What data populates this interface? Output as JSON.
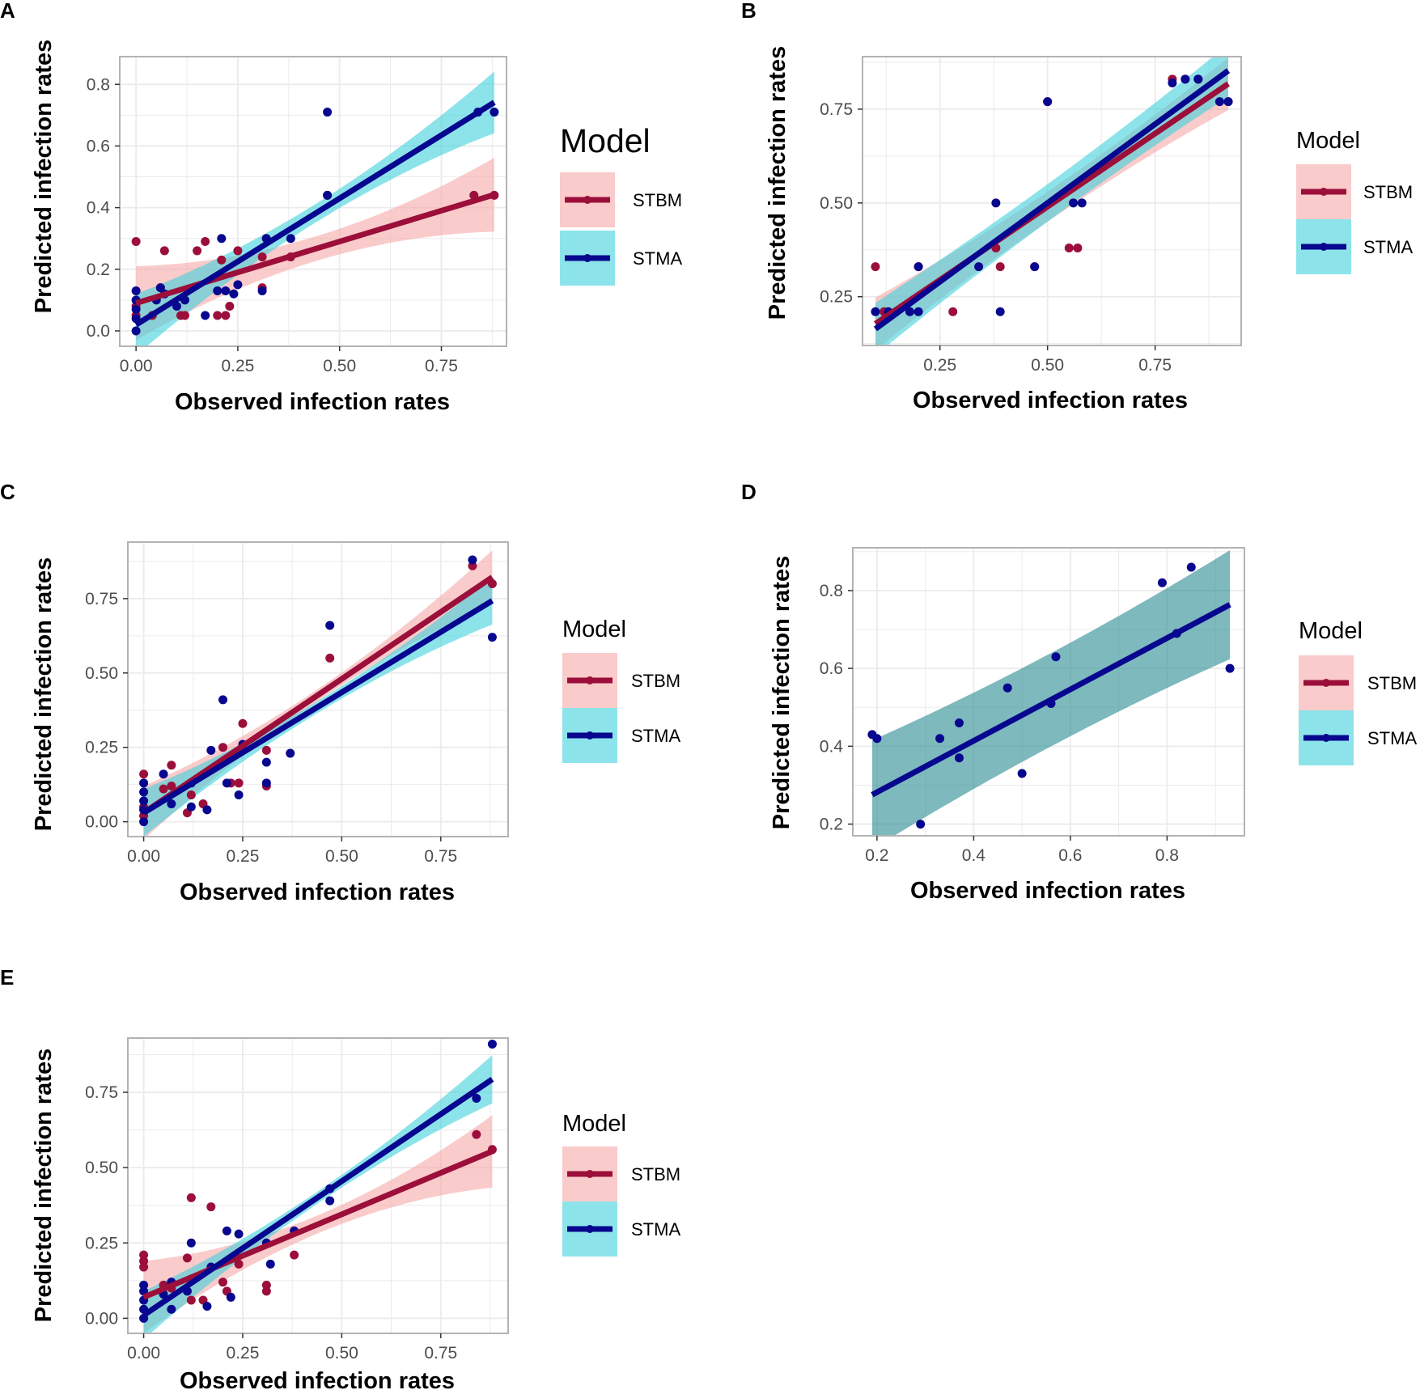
{
  "figure": {
    "colors": {
      "stbm": "#9B0F3A",
      "stma": "#08078F",
      "stbm_band": "#F7A8A8",
      "stma_band": "#3FD2DC",
      "overlap_band": "#2E8E94"
    }
  },
  "chart_data": [
    {
      "type": "scatter",
      "panel_label": "A",
      "xlabel": "Observed infection rates",
      "ylabel": "Predicted infection rates",
      "xlim": [
        -0.04,
        0.91
      ],
      "ylim": [
        -0.05,
        0.89
      ],
      "xticks": [
        0,
        0.25,
        0.5,
        0.75
      ],
      "xtick_labels": [
        "0.00",
        "0.25",
        "0.50",
        "0.75"
      ],
      "yticks": [
        0,
        0.2,
        0.4,
        0.6,
        0.8
      ],
      "ytick_labels": [
        "0.0",
        "0.2",
        "0.4",
        "0.6",
        "0.8"
      ],
      "legend": {
        "title": "Model",
        "entries": [
          "STBM",
          "STMA"
        ]
      },
      "series": [
        {
          "name": "STBM",
          "fit": {
            "intercept": 0.09,
            "slope": 0.4,
            "band_lo": 0.04,
            "band_hi": 0.12,
            "band_x0": 0.0,
            "band_x1": 0.88
          },
          "points": [
            [
              0,
              0.29
            ],
            [
              0,
              0.05
            ],
            [
              0,
              0.08
            ],
            [
              0.04,
              0.05
            ],
            [
              0.06,
              0.14
            ],
            [
              0.07,
              0.26
            ],
            [
              0.11,
              0.05
            ],
            [
              0.12,
              0.05
            ],
            [
              0.15,
              0.26
            ],
            [
              0.17,
              0.29
            ],
            [
              0.2,
              0.05
            ],
            [
              0.21,
              0.23
            ],
            [
              0.22,
              0.05
            ],
            [
              0.23,
              0.08
            ],
            [
              0.25,
              0.26
            ],
            [
              0.31,
              0.14
            ],
            [
              0.31,
              0.24
            ],
            [
              0.38,
              0.24
            ],
            [
              0.47,
              0.44
            ],
            [
              0.83,
              0.44
            ],
            [
              0.88,
              0.44
            ]
          ]
        },
        {
          "name": "STMA",
          "fit": {
            "intercept": 0.02,
            "slope": 0.82,
            "band_lo": 0.03,
            "band_hi": 0.1,
            "band_x0": 0.0,
            "band_x1": 0.88
          },
          "points": [
            [
              0,
              0
            ],
            [
              0,
              0.04
            ],
            [
              0,
              0.07
            ],
            [
              0,
              0.1
            ],
            [
              0,
              0.13
            ],
            [
              0.05,
              0.1
            ],
            [
              0.06,
              0.14
            ],
            [
              0.07,
              0.12
            ],
            [
              0.1,
              0.08
            ],
            [
              0.12,
              0.1
            ],
            [
              0.17,
              0.05
            ],
            [
              0.2,
              0.13
            ],
            [
              0.21,
              0.3
            ],
            [
              0.22,
              0.13
            ],
            [
              0.24,
              0.12
            ],
            [
              0.25,
              0.15
            ],
            [
              0.31,
              0.13
            ],
            [
              0.32,
              0.3
            ],
            [
              0.38,
              0.3
            ],
            [
              0.47,
              0.71
            ],
            [
              0.47,
              0.44
            ],
            [
              0.84,
              0.71
            ],
            [
              0.88,
              0.71
            ]
          ]
        }
      ]
    },
    {
      "type": "scatter",
      "panel_label": "B",
      "xlabel": "Observed infection rates",
      "ylabel": "Predicted infection rates",
      "xlim": [
        0.07,
        0.95
      ],
      "ylim": [
        0.12,
        0.89
      ],
      "xticks": [
        0.25,
        0.5,
        0.75
      ],
      "xtick_labels": [
        "0.25",
        "0.50",
        "0.75"
      ],
      "yticks": [
        0.25,
        0.5,
        0.75
      ],
      "ytick_labels": [
        "0.25",
        "0.50",
        "0.75"
      ],
      "legend": {
        "title": "Model",
        "entries": [
          "STBM",
          "STMA"
        ]
      },
      "series": [
        {
          "name": "STBM",
          "fit": {
            "intercept": 0.1,
            "slope": 0.78,
            "band_lo": 0.04,
            "band_hi": 0.07,
            "band_x0": 0.1,
            "band_x1": 0.92
          },
          "points": [
            [
              0.1,
              0.33
            ],
            [
              0.12,
              0.21
            ],
            [
              0.2,
              0.33
            ],
            [
              0.28,
              0.21
            ],
            [
              0.38,
              0.38
            ],
            [
              0.39,
              0.33
            ],
            [
              0.47,
              0.33
            ],
            [
              0.5,
              0.77
            ],
            [
              0.55,
              0.38
            ],
            [
              0.57,
              0.38
            ],
            [
              0.79,
              0.83
            ],
            [
              0.82,
              0.83
            ],
            [
              0.85,
              0.83
            ],
            [
              0.92,
              0.77
            ]
          ]
        },
        {
          "name": "STMA",
          "fit": {
            "intercept": 0.08,
            "slope": 0.84,
            "band_lo": 0.05,
            "band_hi": 0.07,
            "band_x0": 0.1,
            "band_x1": 0.92
          },
          "points": [
            [
              0.1,
              0.21
            ],
            [
              0.13,
              0.21
            ],
            [
              0.18,
              0.21
            ],
            [
              0.2,
              0.21
            ],
            [
              0.2,
              0.33
            ],
            [
              0.34,
              0.33
            ],
            [
              0.38,
              0.5
            ],
            [
              0.39,
              0.21
            ],
            [
              0.47,
              0.33
            ],
            [
              0.5,
              0.77
            ],
            [
              0.56,
              0.5
            ],
            [
              0.58,
              0.5
            ],
            [
              0.79,
              0.82
            ],
            [
              0.82,
              0.83
            ],
            [
              0.85,
              0.83
            ],
            [
              0.9,
              0.77
            ],
            [
              0.92,
              0.77
            ]
          ]
        }
      ]
    },
    {
      "type": "scatter",
      "panel_label": "C",
      "xlabel": "Observed infection rates",
      "ylabel": "Predicted infection rates",
      "xlim": [
        -0.04,
        0.92
      ],
      "ylim": [
        -0.05,
        0.94
      ],
      "xticks": [
        0,
        0.25,
        0.5,
        0.75
      ],
      "xtick_labels": [
        "0.00",
        "0.25",
        "0.50",
        "0.75"
      ],
      "yticks": [
        0,
        0.25,
        0.5,
        0.75
      ],
      "ytick_labels": [
        "0.00",
        "0.25",
        "0.50",
        "0.75"
      ],
      "legend": {
        "title": "Model",
        "entries": [
          "STBM",
          "STMA"
        ]
      },
      "series": [
        {
          "name": "STBM",
          "fit": {
            "intercept": 0.03,
            "slope": 0.9,
            "band_lo": 0.02,
            "band_hi": 0.09,
            "band_x0": 0.0,
            "band_x1": 0.88
          },
          "points": [
            [
              0,
              0.16
            ],
            [
              0,
              0.05
            ],
            [
              0,
              0.02
            ],
            [
              0.05,
              0.11
            ],
            [
              0.07,
              0.19
            ],
            [
              0.07,
              0.12
            ],
            [
              0.11,
              0.03
            ],
            [
              0.12,
              0.09
            ],
            [
              0.15,
              0.06
            ],
            [
              0.2,
              0.25
            ],
            [
              0.22,
              0.13
            ],
            [
              0.24,
              0.13
            ],
            [
              0.25,
              0.33
            ],
            [
              0.31,
              0.24
            ],
            [
              0.31,
              0.12
            ],
            [
              0.47,
              0.55
            ],
            [
              0.83,
              0.86
            ],
            [
              0.88,
              0.8
            ]
          ]
        },
        {
          "name": "STMA",
          "fit": {
            "intercept": 0.03,
            "slope": 0.81,
            "band_lo": 0.02,
            "band_hi": 0.08,
            "band_x0": 0.0,
            "band_x1": 0.88
          },
          "points": [
            [
              0,
              0
            ],
            [
              0,
              0.04
            ],
            [
              0,
              0.07
            ],
            [
              0,
              0.1
            ],
            [
              0,
              0.13
            ],
            [
              0.05,
              0.16
            ],
            [
              0.07,
              0.06
            ],
            [
              0.12,
              0.05
            ],
            [
              0.12,
              0.13
            ],
            [
              0.16,
              0.04
            ],
            [
              0.17,
              0.24
            ],
            [
              0.2,
              0.41
            ],
            [
              0.21,
              0.13
            ],
            [
              0.24,
              0.09
            ],
            [
              0.25,
              0.26
            ],
            [
              0.31,
              0.2
            ],
            [
              0.31,
              0.13
            ],
            [
              0.37,
              0.23
            ],
            [
              0.47,
              0.66
            ],
            [
              0.83,
              0.88
            ],
            [
              0.88,
              0.62
            ]
          ]
        }
      ]
    },
    {
      "type": "scatter",
      "panel_label": "D",
      "xlabel": "Observed infection rates",
      "ylabel": "Predicted infection rates",
      "xlim": [
        0.15,
        0.96
      ],
      "ylim": [
        0.17,
        0.91
      ],
      "xticks": [
        0.2,
        0.4,
        0.6,
        0.8
      ],
      "xtick_labels": [
        "0.2",
        "0.4",
        "0.6",
        "0.8"
      ],
      "yticks": [
        0.2,
        0.4,
        0.6,
        0.8
      ],
      "ytick_labels": [
        "0.2",
        "0.4",
        "0.6",
        "0.8"
      ],
      "legend": {
        "title": "Model",
        "entries": [
          "STBM",
          "STMA"
        ]
      },
      "series": [
        {
          "name": "STBM",
          "fit": null,
          "points": []
        },
        {
          "name": "STMA",
          "fit": {
            "intercept": 0.15,
            "slope": 0.66,
            "band_lo": 0.12,
            "band_hi": 0.14,
            "band_x0": 0.19,
            "band_x1": 0.93
          },
          "points": [
            [
              0.19,
              0.43
            ],
            [
              0.2,
              0.42
            ],
            [
              0.29,
              0.2
            ],
            [
              0.33,
              0.42
            ],
            [
              0.37,
              0.46
            ],
            [
              0.37,
              0.37
            ],
            [
              0.47,
              0.55
            ],
            [
              0.5,
              0.33
            ],
            [
              0.56,
              0.51
            ],
            [
              0.57,
              0.63
            ],
            [
              0.79,
              0.82
            ],
            [
              0.82,
              0.69
            ],
            [
              0.85,
              0.86
            ],
            [
              0.93,
              0.6
            ]
          ]
        }
      ]
    },
    {
      "type": "scatter",
      "panel_label": "E",
      "xlabel": "Observed infection rates",
      "ylabel": "Predicted infection rates",
      "xlim": [
        -0.04,
        0.92
      ],
      "ylim": [
        -0.05,
        0.93
      ],
      "xticks": [
        0,
        0.25,
        0.5,
        0.75
      ],
      "xtick_labels": [
        "0.00",
        "0.25",
        "0.50",
        "0.75"
      ],
      "yticks": [
        0,
        0.25,
        0.5,
        0.75
      ],
      "ytick_labels": [
        "0.00",
        "0.25",
        "0.50",
        "0.75"
      ],
      "legend": {
        "title": "Model",
        "entries": [
          "STBM",
          "STMA"
        ]
      },
      "series": [
        {
          "name": "STBM",
          "fit": {
            "intercept": 0.07,
            "slope": 0.55,
            "band_lo": 0.03,
            "band_hi": 0.12,
            "band_x0": 0.0,
            "band_x1": 0.88
          },
          "points": [
            [
              0,
              0.21
            ],
            [
              0,
              0.19
            ],
            [
              0,
              0.17
            ],
            [
              0.05,
              0.11
            ],
            [
              0.07,
              0.1
            ],
            [
              0.11,
              0.2
            ],
            [
              0.12,
              0.4
            ],
            [
              0.12,
              0.06
            ],
            [
              0.15,
              0.06
            ],
            [
              0.17,
              0.37
            ],
            [
              0.2,
              0.12
            ],
            [
              0.21,
              0.09
            ],
            [
              0.24,
              0.18
            ],
            [
              0.31,
              0.09
            ],
            [
              0.31,
              0.11
            ],
            [
              0.38,
              0.21
            ],
            [
              0.84,
              0.61
            ],
            [
              0.88,
              0.56
            ]
          ]
        },
        {
          "name": "STMA",
          "fit": {
            "intercept": 0.01,
            "slope": 0.89,
            "band_lo": 0.02,
            "band_hi": 0.08,
            "band_x0": 0.0,
            "band_x1": 0.88
          },
          "points": [
            [
              0,
              0
            ],
            [
              0,
              0.03
            ],
            [
              0,
              0.06
            ],
            [
              0,
              0.09
            ],
            [
              0,
              0.11
            ],
            [
              0.05,
              0.08
            ],
            [
              0.07,
              0.03
            ],
            [
              0.07,
              0.12
            ],
            [
              0.11,
              0.09
            ],
            [
              0.12,
              0.25
            ],
            [
              0.16,
              0.04
            ],
            [
              0.17,
              0.17
            ],
            [
              0.21,
              0.29
            ],
            [
              0.22,
              0.07
            ],
            [
              0.24,
              0.28
            ],
            [
              0.31,
              0.25
            ],
            [
              0.32,
              0.18
            ],
            [
              0.38,
              0.29
            ],
            [
              0.47,
              0.43
            ],
            [
              0.47,
              0.39
            ],
            [
              0.84,
              0.73
            ],
            [
              0.88,
              0.91
            ]
          ]
        }
      ]
    }
  ]
}
